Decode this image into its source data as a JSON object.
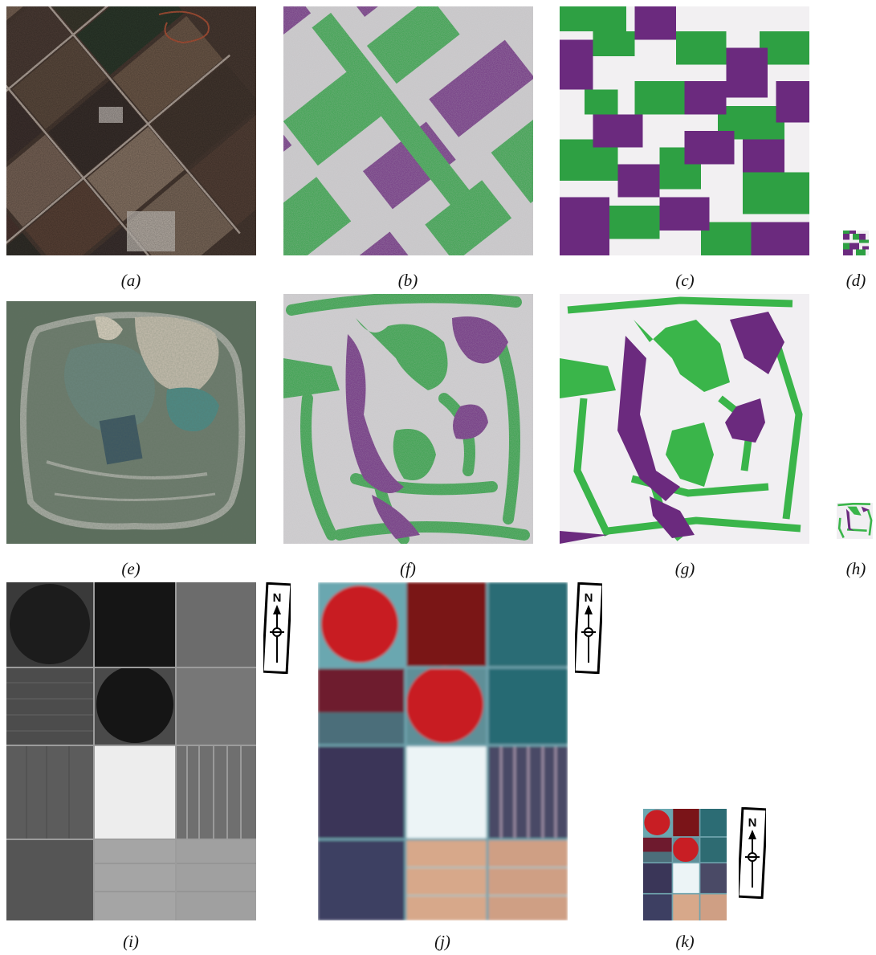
{
  "captions": {
    "a": "(a)",
    "b": "(b)",
    "c": "(c)",
    "d": "(d)",
    "e": "(e)",
    "f": "(f)",
    "g": "(g)",
    "h": "(h)",
    "i": "(i)",
    "j": "(j)",
    "k": "(k)"
  },
  "north_arrow_label": "N",
  "colors": {
    "green": "#2ea043",
    "purple": "#6b2a7e",
    "light": "#e7e5e8",
    "red_field": "#c81e24",
    "teal": "#2e6b72"
  }
}
